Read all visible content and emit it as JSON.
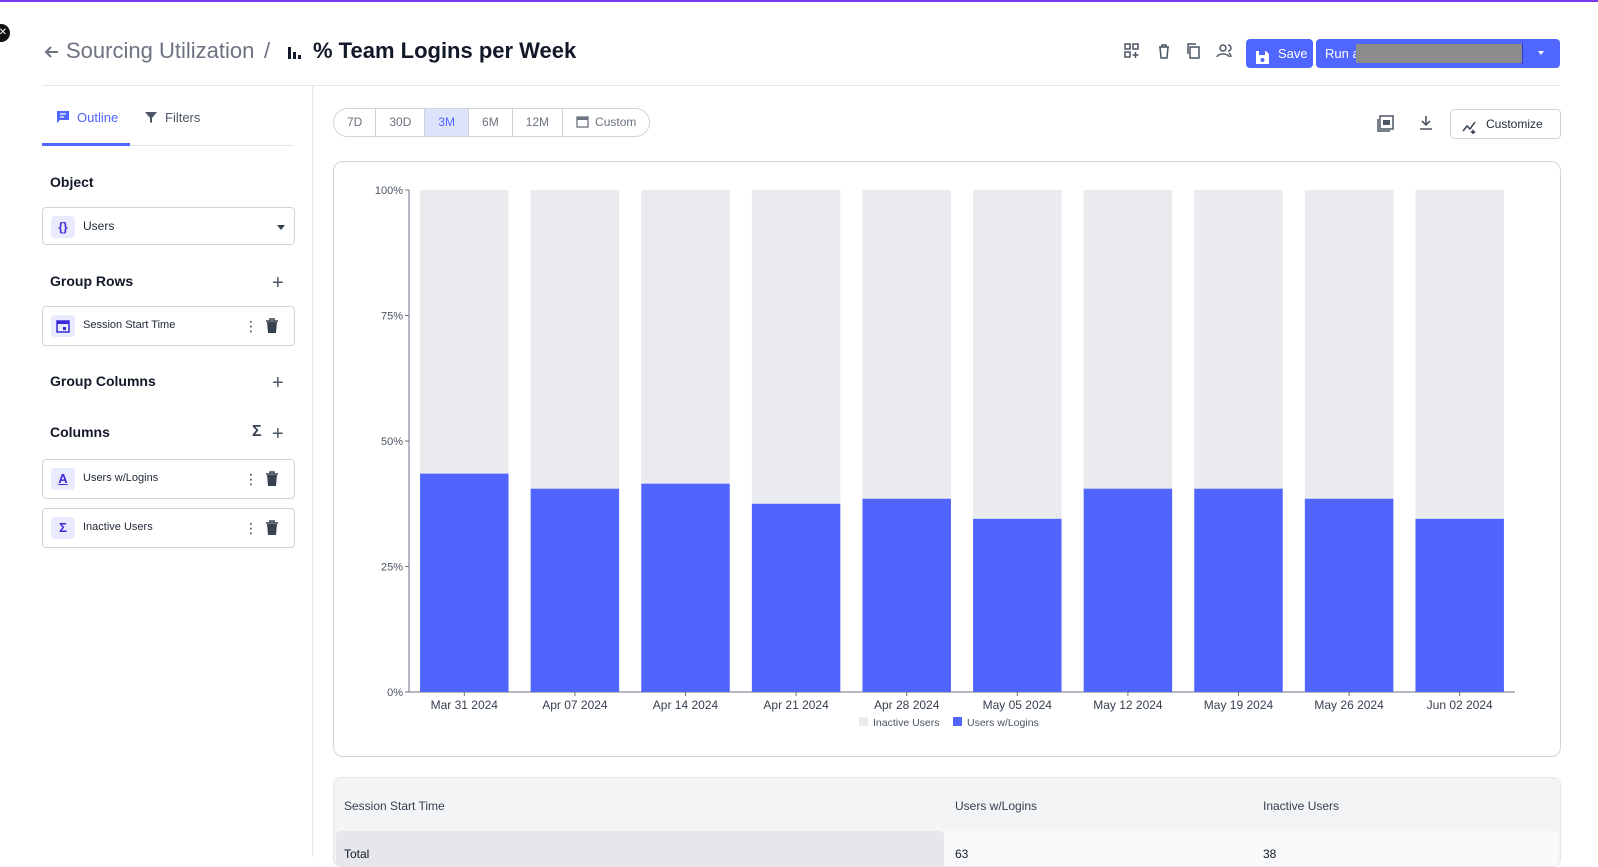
{
  "header": {
    "breadcrumb_parent": "Sourcing Utilization",
    "breadcrumb_separator": "/",
    "title": "% Team Logins per Week",
    "save_label": "Save",
    "run_label": "Run a"
  },
  "sidebar": {
    "tabs": [
      {
        "label": "Outline",
        "active": true
      },
      {
        "label": "Filters",
        "active": false
      }
    ],
    "object": {
      "title": "Object",
      "value": "Users"
    },
    "group_rows": {
      "title": "Group Rows",
      "items": [
        {
          "label": "Session Start Time",
          "icon": "calendar-icon"
        }
      ]
    },
    "group_columns": {
      "title": "Group Columns"
    },
    "columns": {
      "title": "Columns",
      "items": [
        {
          "label": "Users w/Logins",
          "icon": "text-a-icon",
          "glyph": "A"
        },
        {
          "label": "Inactive Users",
          "icon": "sigma-icon",
          "glyph": "Σ"
        }
      ]
    }
  },
  "toolbar": {
    "ranges": [
      "7D",
      "30D",
      "3M",
      "6M",
      "12M",
      "Custom"
    ],
    "active_range": "3M",
    "customize_label": "Customize"
  },
  "colors": {
    "accent": "#4f66ff",
    "inactive": "#e9ebee",
    "active_users": "#5065fe"
  },
  "chart_data": {
    "type": "bar",
    "stacked": true,
    "categories": [
      "Mar 31 2024",
      "Apr 07 2024",
      "Apr 14 2024",
      "Apr 21 2024",
      "Apr 28 2024",
      "May 05 2024",
      "May 12 2024",
      "May 19 2024",
      "May 26 2024",
      "Jun 02 2024"
    ],
    "series": [
      {
        "name": "Users w/Logins",
        "values": [
          43.5,
          40.5,
          41.5,
          37.5,
          38.5,
          34.5,
          40.5,
          40.5,
          38.5,
          34.5
        ]
      },
      {
        "name": "Inactive Users",
        "values": [
          56.5,
          59.5,
          58.5,
          62.5,
          61.5,
          65.5,
          59.5,
          59.5,
          61.5,
          65.5
        ]
      }
    ],
    "legend_order": [
      "Inactive Users",
      "Users w/Logins"
    ],
    "legend_position": "bottom",
    "yticks": [
      "0%",
      "25%",
      "50%",
      "75%",
      "100%"
    ],
    "ylim": [
      0,
      100
    ],
    "title": "",
    "xlabel": "",
    "ylabel": ""
  },
  "table": {
    "headers": [
      "Session Start Time",
      "Users w/Logins",
      "Inactive Users"
    ],
    "rows": [
      [
        "Total",
        "63",
        "38"
      ]
    ]
  }
}
